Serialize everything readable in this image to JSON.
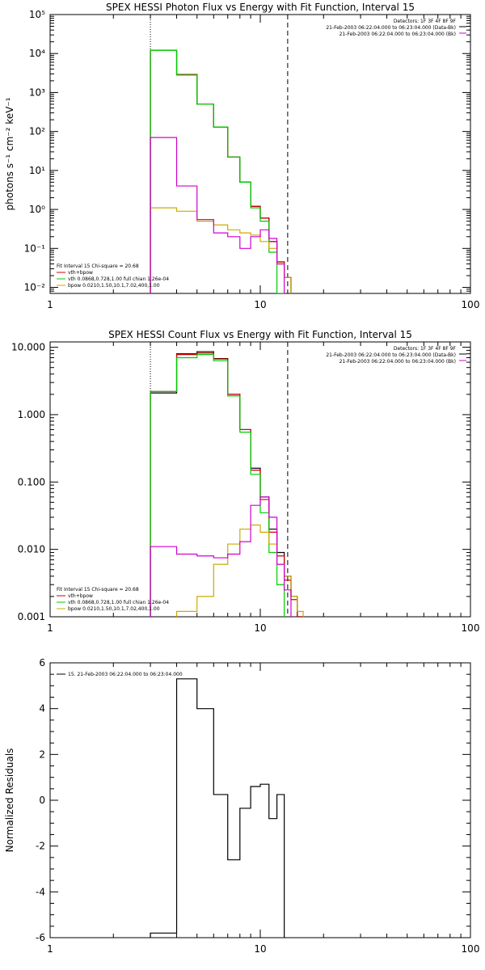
{
  "chart_data": [
    {
      "type": "line",
      "step": true,
      "title": "SPEX HESSI Photon Flux vs Energy with Fit Function, Interval 15",
      "xlabel": "",
      "ylabel": "photons s⁻¹ cm⁻² keV⁻¹",
      "xscale": "log",
      "yscale": "log",
      "xlim": [
        1,
        100
      ],
      "ylim": [
        0.007,
        100000
      ],
      "x_ticks": [
        "1",
        "10",
        "100"
      ],
      "y_ticks": [
        {
          "value": 0.01,
          "label": "10⁻²"
        },
        {
          "value": 0.1,
          "label": "10⁻¹"
        },
        {
          "value": 1,
          "label": "10⁰"
        },
        {
          "value": 10,
          "label": "10¹"
        },
        {
          "value": 100,
          "label": "10²"
        },
        {
          "value": 1000,
          "label": "10³"
        },
        {
          "value": 10000,
          "label": "10⁴"
        },
        {
          "value": 100000,
          "label": "10⁵"
        }
      ],
      "vlines": [
        {
          "x": 3.0,
          "style": "dotted"
        },
        {
          "x": 13.5,
          "style": "dashed"
        }
      ],
      "info_lines": [
        "Detectors: 1F 3F 4F 8F 9F",
        "21-Feb-2003 06:22:04.000 to 06:23:04.000 (Data-Bk)",
        "21-Feb-2003 06:22:04.000 to 06:23:04.000 (Bk)"
      ],
      "info_colors": [
        "#000000",
        "#000000",
        "#d000d0"
      ],
      "legend_lines": [
        {
          "text": "Fit Interval 15   Chi-square = 20.68",
          "color": ""
        },
        {
          "text": "vth+bpow",
          "color": "#d00000"
        },
        {
          "text": "vth 0.0868,0.728,1.00  full chian 1.26e-04",
          "color": "#00cc00"
        },
        {
          "text": "bpow 0.0210,1.50,10.1,7.02,400,1.00",
          "color": "#ccaa00"
        }
      ],
      "edges": [
        3.0,
        4.0,
        5.0,
        6.0,
        7.0,
        8.0,
        9.0,
        10.0,
        11.0,
        12.0,
        13.0,
        14.0,
        15.0
      ],
      "series": [
        {
          "color": "#000000",
          "values": [
            12000,
            2900,
            500,
            130,
            22,
            5,
            1.2,
            0.6,
            0.15,
            0.045,
            0.018,
            null
          ]
        },
        {
          "color": "#d00000",
          "values": [
            12000,
            2900,
            500,
            130,
            22,
            5,
            1.2,
            0.6,
            0.15,
            0.045,
            0.018,
            null
          ]
        },
        {
          "color": "#00cc00",
          "values": [
            12000,
            2800,
            500,
            130,
            22,
            5,
            1.1,
            0.5,
            0.08,
            0.005,
            null,
            null
          ]
        },
        {
          "color": "#ccaa00",
          "values": [
            1.1,
            0.9,
            0.5,
            0.4,
            0.3,
            0.25,
            0.22,
            0.15,
            0.1,
            0.04,
            0.018,
            null
          ]
        },
        {
          "color": "#d000d0",
          "values": [
            70,
            4,
            0.55,
            0.25,
            0.2,
            0.1,
            0.2,
            0.3,
            0.18,
            0.04,
            null,
            null
          ]
        }
      ]
    },
    {
      "type": "line",
      "step": true,
      "title": "SPEX HESSI Count Flux vs Energy with Fit Function, Interval 15",
      "xlabel": "",
      "ylabel": "",
      "xscale": "log",
      "yscale": "log",
      "xlim": [
        1,
        100
      ],
      "ylim": [
        0.001,
        12
      ],
      "x_ticks": [
        "1",
        "10",
        "100"
      ],
      "y_ticks": [
        {
          "value": 0.001,
          "label": "0.001"
        },
        {
          "value": 0.01,
          "label": "0.010"
        },
        {
          "value": 0.1,
          "label": "0.100"
        },
        {
          "value": 1,
          "label": "1.000"
        },
        {
          "value": 10,
          "label": "10.000"
        }
      ],
      "vlines": [
        {
          "x": 3.0,
          "style": "dotted"
        },
        {
          "x": 13.5,
          "style": "dashed"
        }
      ],
      "info_lines": [
        "Detectors: 1F 3F 4F 8F 9F",
        "21-Feb-2003 06:22:04.000 to 06:23:04.000 (Data-Bk)",
        "21-Feb-2003 06:22:04.000 to 06:23:04.000 (Bk)"
      ],
      "info_colors": [
        "#000000",
        "#000000",
        "#d000d0"
      ],
      "legend_lines": [
        {
          "text": "Fit Interval 15   Chi-square = 20.68",
          "color": ""
        },
        {
          "text": "vth+bpow",
          "color": "#d00000"
        },
        {
          "text": "vth 0.0868,0.728,1.00  full chian 1.26e-04",
          "color": "#00cc00"
        },
        {
          "text": "bpow 0.0210,1.50,10.1,7.02,400,1.00",
          "color": "#ccaa00"
        }
      ],
      "edges": [
        3.0,
        4.0,
        5.0,
        6.0,
        7.0,
        8.0,
        9.0,
        10.0,
        11.0,
        12.0,
        13.0,
        14.0,
        15.0,
        16.0
      ],
      "series": [
        {
          "color": "#000000",
          "values": [
            2.1,
            8.0,
            8.6,
            6.8,
            2.0,
            0.6,
            0.16,
            0.06,
            0.02,
            0.009,
            0.004,
            0.002,
            0.001
          ]
        },
        {
          "color": "#d00000",
          "values": [
            2.2,
            7.8,
            8.2,
            6.7,
            2.0,
            0.6,
            0.15,
            0.055,
            0.018,
            0.008,
            0.0035,
            0.0018,
            0.001
          ]
        },
        {
          "color": "#00cc00",
          "values": [
            2.2,
            7.0,
            7.8,
            6.3,
            1.9,
            0.55,
            0.13,
            0.035,
            0.009,
            0.003,
            null,
            null,
            null
          ]
        },
        {
          "color": "#ccaa00",
          "values": [
            null,
            0.0012,
            0.002,
            0.006,
            0.012,
            0.02,
            0.023,
            0.018,
            0.012,
            0.006,
            0.004,
            0.002,
            0.0012
          ]
        },
        {
          "color": "#d000d0",
          "values": [
            0.011,
            0.0085,
            0.008,
            0.0075,
            0.0085,
            0.013,
            0.045,
            0.06,
            0.03,
            0.006,
            0.0025,
            null,
            null
          ]
        }
      ]
    },
    {
      "type": "line",
      "step": true,
      "title": "",
      "xlabel": "",
      "ylabel": "Normalized Residuals",
      "xscale": "log",
      "yscale": "linear",
      "xlim": [
        1,
        100
      ],
      "ylim": [
        -6,
        6
      ],
      "x_ticks": [
        "1",
        "10",
        "100"
      ],
      "y_ticks": [
        {
          "value": -6,
          "label": "-6"
        },
        {
          "value": -4,
          "label": "-4"
        },
        {
          "value": -2,
          "label": "-2"
        },
        {
          "value": 0,
          "label": "0"
        },
        {
          "value": 2,
          "label": "2"
        },
        {
          "value": 4,
          "label": "4"
        },
        {
          "value": 6,
          "label": "6"
        }
      ],
      "vlines": [],
      "info_lines": [],
      "info_colors": [],
      "legend_lines": [
        {
          "text": "15. 21-Feb-2003 06:22:04.000 to 06:23:04.000",
          "color": "#000000"
        }
      ],
      "edges": [
        3.0,
        4.0,
        5.0,
        6.0,
        7.0,
        8.0,
        9.0,
        10.0,
        11.0,
        12.0,
        13.0
      ],
      "series": [
        {
          "color": "#000000",
          "values": [
            -5.8,
            5.3,
            4.0,
            0.25,
            -2.6,
            -0.35,
            0.6,
            0.7,
            -0.8,
            0.25
          ]
        }
      ]
    }
  ]
}
